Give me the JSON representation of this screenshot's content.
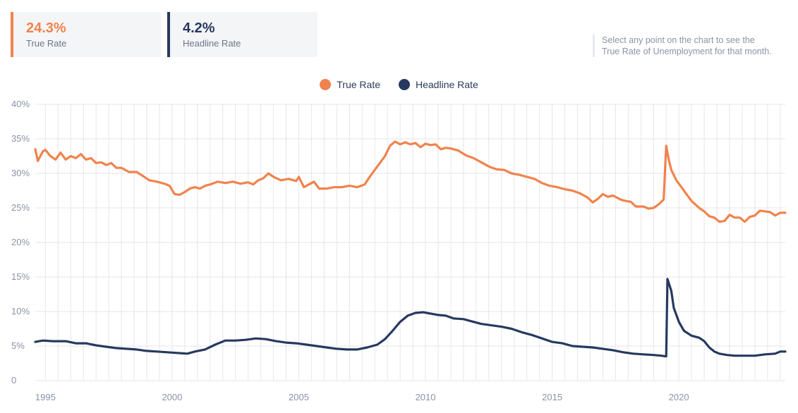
{
  "kpis": {
    "true_rate": {
      "value": "24.3%",
      "label": "True Rate"
    },
    "headline_rate": {
      "value": "4.2%",
      "label": "Headline Rate"
    }
  },
  "hint": {
    "line1": "Select any point on the chart to see the",
    "line2": "True Rate of Unemployment for that month."
  },
  "colors": {
    "true_rate": "#f0834d",
    "headline_rate": "#27395f",
    "grid": "#e4e6eb",
    "tick": "#8a93a6"
  },
  "chart_data": {
    "type": "line",
    "title": "",
    "xlabel": "",
    "ylabel": "",
    "xlim": [
      1994.6,
      2024.2
    ],
    "ylim": [
      0,
      40
    ],
    "y_ticks": [
      0,
      5,
      10,
      15,
      20,
      25,
      30,
      35,
      40
    ],
    "y_tick_labels": [
      "0",
      "5%",
      "10%",
      "15%",
      "20%",
      "25%",
      "30%",
      "35%",
      "40%"
    ],
    "x_ticks": [
      1995,
      2000,
      2005,
      2010,
      2015,
      2020
    ],
    "x_tick_labels": [
      "1995",
      "2000",
      "2005",
      "2010",
      "2015",
      "2020"
    ],
    "legend": [
      "True Rate",
      "Headline Rate"
    ],
    "legend_position": "top-center",
    "grid": true,
    "series": [
      {
        "name": "True Rate",
        "color": "#f0834d",
        "points": [
          [
            1994.6,
            33.5
          ],
          [
            1994.7,
            31.8
          ],
          [
            1994.9,
            33.2
          ],
          [
            1995.0,
            33.4
          ],
          [
            1995.2,
            32.5
          ],
          [
            1995.4,
            32.0
          ],
          [
            1995.6,
            33.0
          ],
          [
            1995.8,
            32.0
          ],
          [
            1996.0,
            32.5
          ],
          [
            1996.2,
            32.2
          ],
          [
            1996.4,
            32.8
          ],
          [
            1996.6,
            32.0
          ],
          [
            1996.8,
            32.2
          ],
          [
            1997.0,
            31.5
          ],
          [
            1997.2,
            31.6
          ],
          [
            1997.4,
            31.2
          ],
          [
            1997.6,
            31.5
          ],
          [
            1997.8,
            30.8
          ],
          [
            1998.0,
            30.8
          ],
          [
            1998.3,
            30.2
          ],
          [
            1998.6,
            30.2
          ],
          [
            1998.9,
            29.5
          ],
          [
            1999.1,
            29.0
          ],
          [
            1999.4,
            28.8
          ],
          [
            1999.7,
            28.5
          ],
          [
            1999.9,
            28.2
          ],
          [
            2000.1,
            27.0
          ],
          [
            2000.3,
            26.9
          ],
          [
            2000.5,
            27.3
          ],
          [
            2000.7,
            27.8
          ],
          [
            2000.9,
            28.0
          ],
          [
            2001.1,
            27.8
          ],
          [
            2001.3,
            28.2
          ],
          [
            2001.5,
            28.4
          ],
          [
            2001.8,
            28.8
          ],
          [
            2002.1,
            28.6
          ],
          [
            2002.4,
            28.8
          ],
          [
            2002.7,
            28.5
          ],
          [
            2003.0,
            28.7
          ],
          [
            2003.2,
            28.4
          ],
          [
            2003.4,
            29.0
          ],
          [
            2003.6,
            29.3
          ],
          [
            2003.8,
            30.0
          ],
          [
            2004.0,
            29.5
          ],
          [
            2004.3,
            29.0
          ],
          [
            2004.6,
            29.2
          ],
          [
            2004.9,
            28.9
          ],
          [
            2005.0,
            29.5
          ],
          [
            2005.2,
            28.0
          ],
          [
            2005.4,
            28.4
          ],
          [
            2005.6,
            28.8
          ],
          [
            2005.8,
            27.8
          ],
          [
            2006.1,
            27.8
          ],
          [
            2006.4,
            28.0
          ],
          [
            2006.7,
            28.0
          ],
          [
            2007.0,
            28.2
          ],
          [
            2007.3,
            28.0
          ],
          [
            2007.6,
            28.4
          ],
          [
            2007.8,
            29.5
          ],
          [
            2008.0,
            30.5
          ],
          [
            2008.2,
            31.5
          ],
          [
            2008.4,
            32.5
          ],
          [
            2008.6,
            34.0
          ],
          [
            2008.8,
            34.6
          ],
          [
            2009.0,
            34.2
          ],
          [
            2009.2,
            34.5
          ],
          [
            2009.4,
            34.2
          ],
          [
            2009.6,
            34.4
          ],
          [
            2009.8,
            33.8
          ],
          [
            2010.0,
            34.3
          ],
          [
            2010.2,
            34.1
          ],
          [
            2010.4,
            34.2
          ],
          [
            2010.6,
            33.5
          ],
          [
            2010.8,
            33.7
          ],
          [
            2011.0,
            33.6
          ],
          [
            2011.3,
            33.3
          ],
          [
            2011.6,
            32.6
          ],
          [
            2011.9,
            32.2
          ],
          [
            2012.2,
            31.6
          ],
          [
            2012.5,
            31.0
          ],
          [
            2012.8,
            30.6
          ],
          [
            2013.1,
            30.5
          ],
          [
            2013.4,
            30.0
          ],
          [
            2013.7,
            29.8
          ],
          [
            2014.0,
            29.5
          ],
          [
            2014.3,
            29.2
          ],
          [
            2014.6,
            28.6
          ],
          [
            2014.9,
            28.2
          ],
          [
            2015.2,
            28.0
          ],
          [
            2015.5,
            27.7
          ],
          [
            2015.8,
            27.5
          ],
          [
            2016.1,
            27.1
          ],
          [
            2016.4,
            26.5
          ],
          [
            2016.6,
            25.8
          ],
          [
            2016.8,
            26.3
          ],
          [
            2017.0,
            27.0
          ],
          [
            2017.2,
            26.6
          ],
          [
            2017.4,
            26.8
          ],
          [
            2017.7,
            26.2
          ],
          [
            2017.9,
            26.0
          ],
          [
            2018.1,
            25.9
          ],
          [
            2018.3,
            25.2
          ],
          [
            2018.6,
            25.2
          ],
          [
            2018.8,
            24.9
          ],
          [
            2019.0,
            25.0
          ],
          [
            2019.2,
            25.5
          ],
          [
            2019.4,
            26.2
          ],
          [
            2019.5,
            34.0
          ],
          [
            2019.6,
            32.0
          ],
          [
            2019.7,
            30.5
          ],
          [
            2019.9,
            29.0
          ],
          [
            2020.1,
            28.0
          ],
          [
            2020.3,
            27.0
          ],
          [
            2020.5,
            26.0
          ],
          [
            2020.8,
            25.0
          ],
          [
            2021.0,
            24.5
          ],
          [
            2021.2,
            23.8
          ],
          [
            2021.4,
            23.6
          ],
          [
            2021.6,
            23.0
          ],
          [
            2021.8,
            23.1
          ],
          [
            2022.0,
            24.0
          ],
          [
            2022.2,
            23.6
          ],
          [
            2022.4,
            23.6
          ],
          [
            2022.6,
            23.0
          ],
          [
            2022.8,
            23.7
          ],
          [
            2023.0,
            23.9
          ],
          [
            2023.2,
            24.6
          ],
          [
            2023.4,
            24.5
          ],
          [
            2023.6,
            24.4
          ],
          [
            2023.8,
            23.9
          ],
          [
            2024.0,
            24.3
          ],
          [
            2024.2,
            24.3
          ]
        ]
      },
      {
        "name": "Headline Rate",
        "color": "#27395f",
        "points": [
          [
            1994.6,
            5.6
          ],
          [
            1994.9,
            5.8
          ],
          [
            1995.3,
            5.7
          ],
          [
            1995.8,
            5.7
          ],
          [
            1996.2,
            5.4
          ],
          [
            1996.6,
            5.4
          ],
          [
            1997.0,
            5.1
          ],
          [
            1997.4,
            4.9
          ],
          [
            1997.8,
            4.7
          ],
          [
            1998.2,
            4.6
          ],
          [
            1998.6,
            4.5
          ],
          [
            1999.0,
            4.3
          ],
          [
            1999.4,
            4.2
          ],
          [
            1999.8,
            4.1
          ],
          [
            2000.2,
            4.0
          ],
          [
            2000.6,
            3.9
          ],
          [
            2000.9,
            4.2
          ],
          [
            2001.3,
            4.5
          ],
          [
            2001.7,
            5.2
          ],
          [
            2002.1,
            5.8
          ],
          [
            2002.5,
            5.8
          ],
          [
            2002.9,
            5.9
          ],
          [
            2003.3,
            6.1
          ],
          [
            2003.7,
            6.0
          ],
          [
            2004.1,
            5.7
          ],
          [
            2004.5,
            5.5
          ],
          [
            2004.9,
            5.4
          ],
          [
            2005.3,
            5.2
          ],
          [
            2005.7,
            5.0
          ],
          [
            2006.1,
            4.8
          ],
          [
            2006.5,
            4.6
          ],
          [
            2006.9,
            4.5
          ],
          [
            2007.3,
            4.5
          ],
          [
            2007.7,
            4.8
          ],
          [
            2008.1,
            5.2
          ],
          [
            2008.4,
            6.0
          ],
          [
            2008.7,
            7.2
          ],
          [
            2009.0,
            8.5
          ],
          [
            2009.3,
            9.4
          ],
          [
            2009.6,
            9.8
          ],
          [
            2009.9,
            9.9
          ],
          [
            2010.2,
            9.7
          ],
          [
            2010.5,
            9.5
          ],
          [
            2010.8,
            9.4
          ],
          [
            2011.1,
            9.0
          ],
          [
            2011.5,
            8.9
          ],
          [
            2011.9,
            8.5
          ],
          [
            2012.2,
            8.2
          ],
          [
            2012.6,
            8.0
          ],
          [
            2013.0,
            7.8
          ],
          [
            2013.4,
            7.5
          ],
          [
            2013.8,
            7.0
          ],
          [
            2014.2,
            6.6
          ],
          [
            2014.6,
            6.1
          ],
          [
            2015.0,
            5.6
          ],
          [
            2015.4,
            5.4
          ],
          [
            2015.8,
            5.0
          ],
          [
            2016.2,
            4.9
          ],
          [
            2016.6,
            4.8
          ],
          [
            2017.0,
            4.6
          ],
          [
            2017.4,
            4.4
          ],
          [
            2017.8,
            4.1
          ],
          [
            2018.2,
            3.9
          ],
          [
            2018.6,
            3.8
          ],
          [
            2019.0,
            3.7
          ],
          [
            2019.3,
            3.6
          ],
          [
            2019.5,
            3.5
          ],
          [
            2019.55,
            14.7
          ],
          [
            2019.7,
            13.0
          ],
          [
            2019.8,
            10.5
          ],
          [
            2020.0,
            8.5
          ],
          [
            2020.2,
            7.2
          ],
          [
            2020.5,
            6.5
          ],
          [
            2020.8,
            6.2
          ],
          [
            2021.0,
            5.7
          ],
          [
            2021.2,
            4.8
          ],
          [
            2021.4,
            4.2
          ],
          [
            2021.6,
            3.9
          ],
          [
            2021.9,
            3.7
          ],
          [
            2022.2,
            3.6
          ],
          [
            2022.6,
            3.6
          ],
          [
            2023.0,
            3.6
          ],
          [
            2023.4,
            3.8
          ],
          [
            2023.8,
            3.9
          ],
          [
            2024.0,
            4.2
          ],
          [
            2024.2,
            4.2
          ]
        ]
      }
    ]
  }
}
